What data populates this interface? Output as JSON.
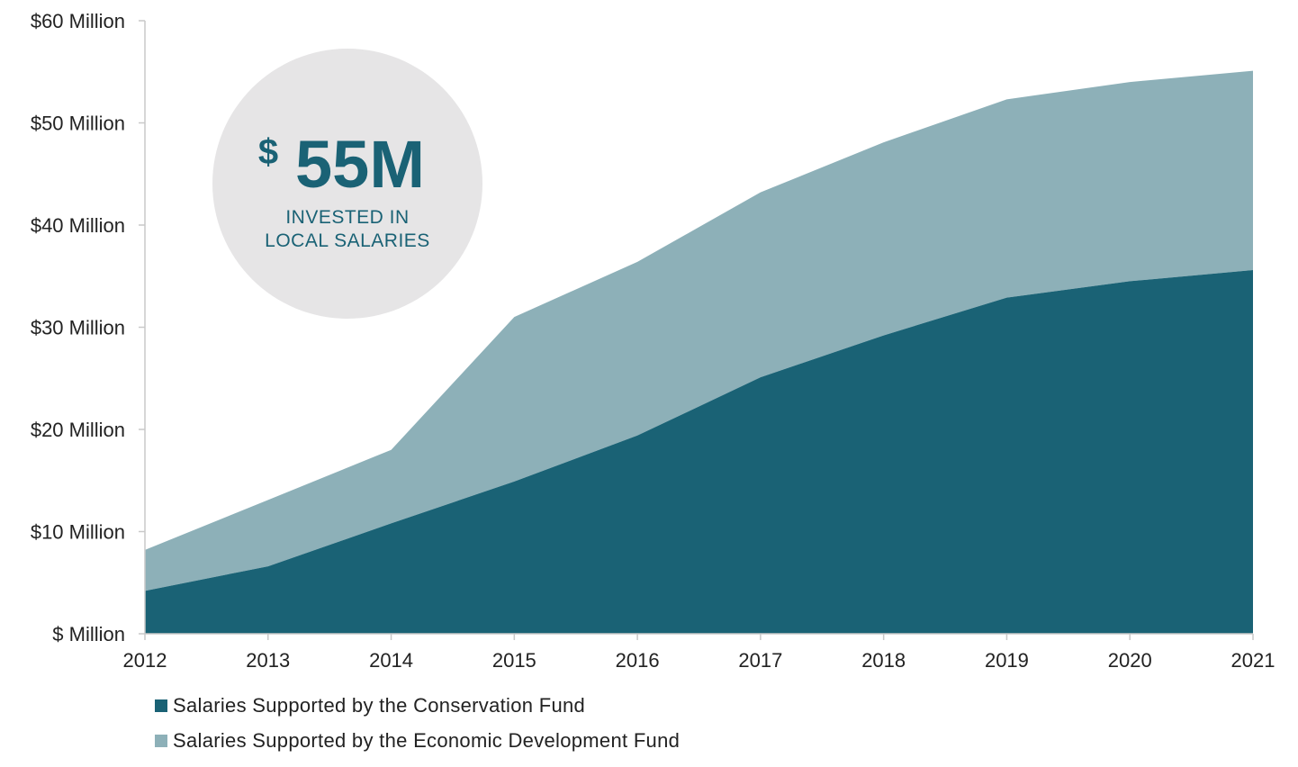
{
  "chart_data": {
    "type": "area",
    "stacked": true,
    "x": [
      "2012",
      "2013",
      "2014",
      "2015",
      "2016",
      "2017",
      "2018",
      "2019",
      "2020",
      "2021"
    ],
    "series": [
      {
        "name": "Salaries Supported by the Conservation Fund",
        "color": "#1a6275",
        "values": [
          4.2,
          6.6,
          10.8,
          14.9,
          19.4,
          25.1,
          29.2,
          32.9,
          34.5,
          35.6
        ]
      },
      {
        "name": "Salaries Supported by the Economic Development Fund",
        "color": "#8db0b8",
        "values": [
          4.0,
          6.5,
          7.2,
          16.1,
          17.0,
          18.1,
          18.9,
          19.4,
          19.5,
          19.5
        ]
      }
    ],
    "ylim": [
      0,
      60
    ],
    "yticks": [
      {
        "value": 0,
        "label": "$ Million"
      },
      {
        "value": 10,
        "label": "$10 Million"
      },
      {
        "value": 20,
        "label": "$20 Million"
      },
      {
        "value": 30,
        "label": "$30 Million"
      },
      {
        "value": 40,
        "label": "$40 Million"
      },
      {
        "value": 50,
        "label": "$50 Million"
      },
      {
        "value": 60,
        "label": "$60 Million"
      }
    ],
    "grid": false,
    "legend_position": "bottom-left",
    "xlabel": "",
    "ylabel": ""
  },
  "badge": {
    "currency": "$",
    "amount": "55M",
    "caption_line1": "INVESTED IN",
    "caption_line2": "LOCAL SALARIES",
    "circle_color": "#e6e5e6",
    "text_color": "#1a6275"
  },
  "colors": {
    "axis": "#c9c9c9",
    "text": "#222222"
  }
}
